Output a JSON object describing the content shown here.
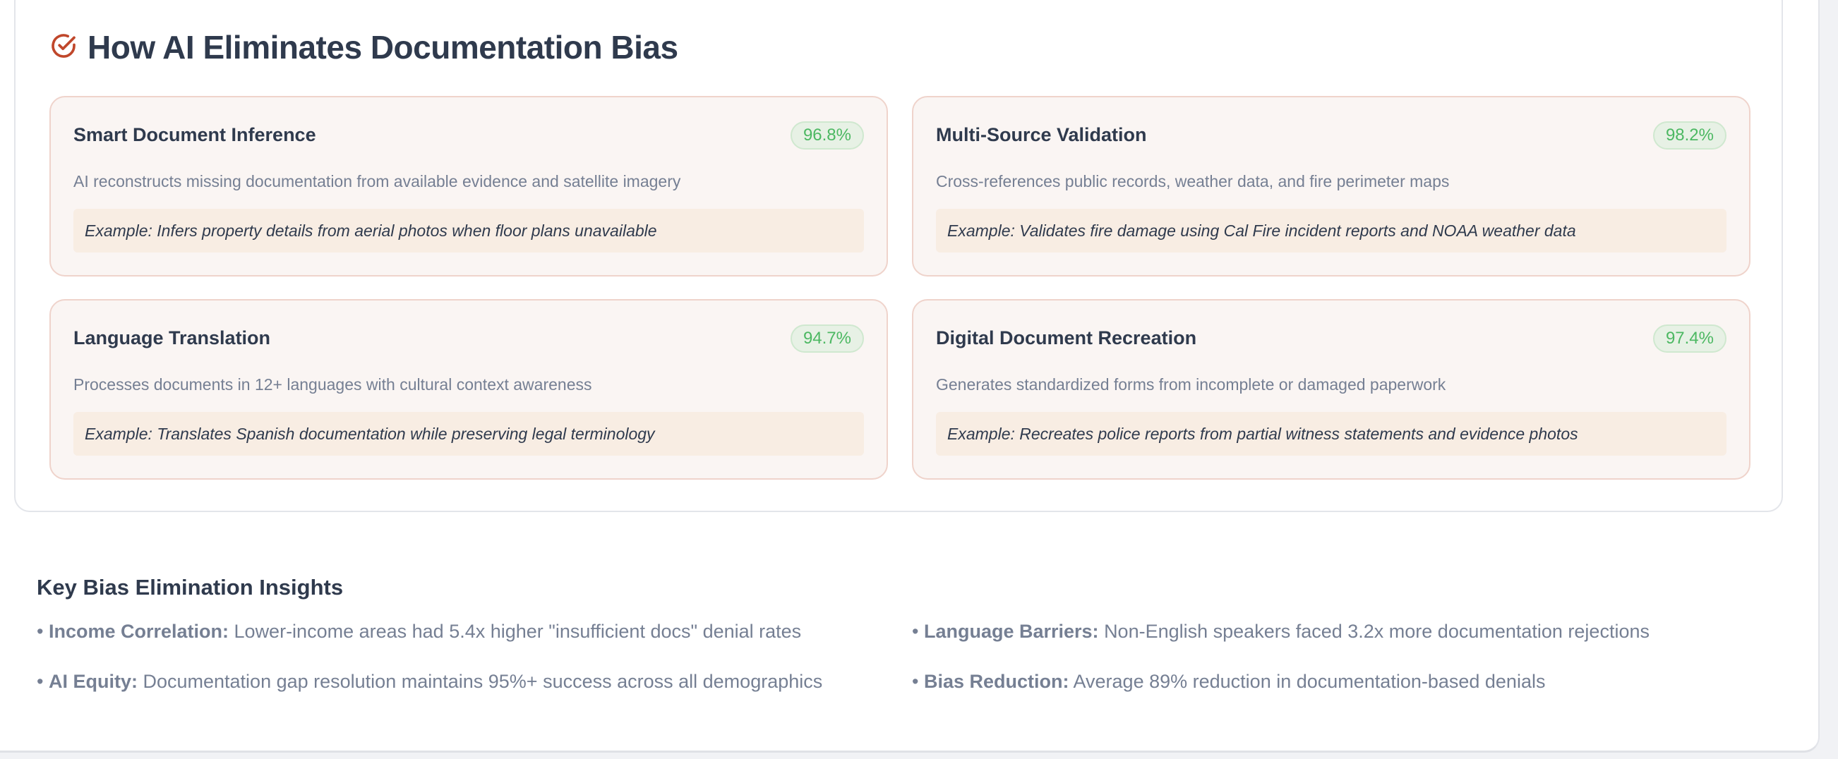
{
  "section": {
    "title": "How AI Eliminates Documentation Bias",
    "icon": "check-circle-icon",
    "accent_color": "#c0472b",
    "cards": [
      {
        "title": "Smart Document Inference",
        "rate": "96.8%",
        "description": "AI reconstructs missing documentation from available evidence and satellite imagery",
        "example": "Example: Infers property details from aerial photos when floor plans unavailable"
      },
      {
        "title": "Multi-Source Validation",
        "rate": "98.2%",
        "description": "Cross-references public records, weather data, and fire perimeter maps",
        "example": "Example: Validates fire damage using Cal Fire incident reports and NOAA weather data"
      },
      {
        "title": "Language Translation",
        "rate": "94.7%",
        "description": "Processes documents in 12+ languages with cultural context awareness",
        "example": "Example: Translates Spanish documentation while preserving legal terminology"
      },
      {
        "title": "Digital Document Recreation",
        "rate": "97.4%",
        "description": "Generates standardized forms from incomplete or damaged paperwork",
        "example": "Example: Recreates police reports from partial witness statements and evidence photos"
      }
    ]
  },
  "insights": {
    "title": "Key Bias Elimination Insights",
    "items": [
      {
        "label": "Income Correlation:",
        "text": "Lower-income areas had 5.4x higher \"insufficient docs\" denial rates"
      },
      {
        "label": "Language Barriers:",
        "text": "Non-English speakers faced 3.2x more documentation rejections"
      },
      {
        "label": "AI Equity:",
        "text": "Documentation gap resolution maintains 95%+ success across all demographics"
      },
      {
        "label": "Bias Reduction:",
        "text": "Average 89% reduction in documentation-based denials"
      }
    ]
  }
}
